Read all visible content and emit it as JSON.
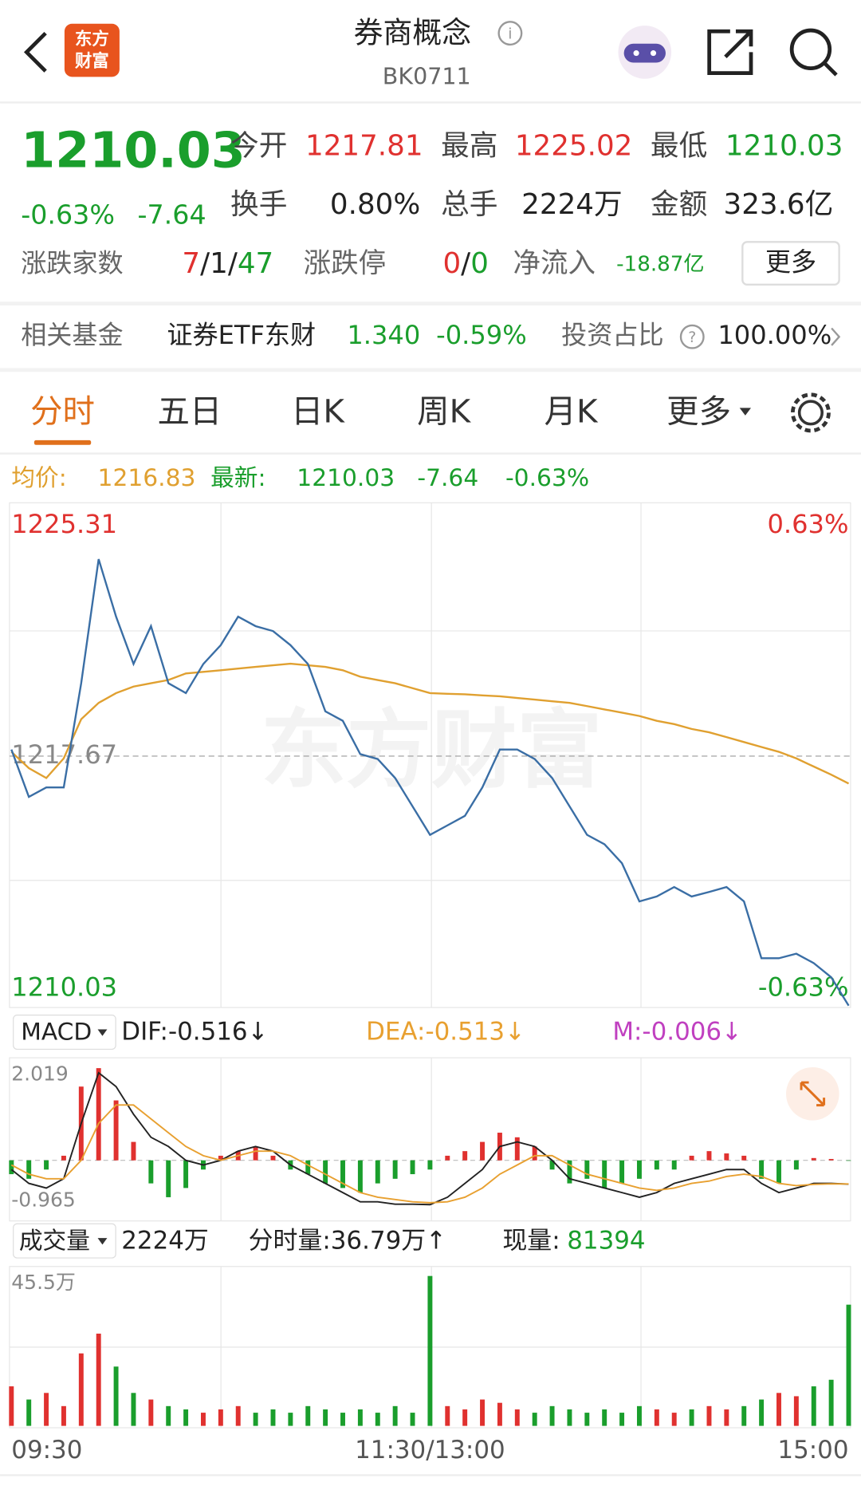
{
  "header": {
    "logo": [
      "东方",
      "财富"
    ],
    "title": "券商概念",
    "info_icon": "i",
    "code": "BK0711"
  },
  "quote": {
    "price": "1210.03",
    "change_pct": "-0.63%",
    "change": "-7.64",
    "fields": [
      {
        "label": "今开",
        "value": "1217.81"
      },
      {
        "label": "最高",
        "value": "1225.02"
      },
      {
        "label": "最低",
        "value": "1210.03"
      },
      {
        "label": "换手",
        "value": "0.80%"
      },
      {
        "label": "总手",
        "value": "2224万"
      },
      {
        "label": "金额",
        "value": "323.6亿"
      }
    ],
    "breadth": {
      "label": "涨跌家数",
      "up": "7",
      "flat": "1",
      "down": "47",
      "sep": "/"
    },
    "limit": {
      "label": "涨跌停",
      "up": "0",
      "down": "0",
      "sep": "/"
    },
    "inflow": {
      "label": "净流入",
      "value": "-18.87亿"
    },
    "more": "更多"
  },
  "fund": {
    "label": "相关基金",
    "name": "证券ETF东财",
    "price": "1.340",
    "pct": "-0.59%",
    "ratio_label": "投资占比",
    "help": "?",
    "ratio": "100.00%"
  },
  "tabs": [
    "分时",
    "五日",
    "日K",
    "周K",
    "月K",
    "更多"
  ],
  "info": {
    "avg_label": "均价:",
    "avg": "1216.83",
    "latest_label": "最新:",
    "latest": "1210.03",
    "change": "-7.64",
    "pct": "-0.63%"
  },
  "watermark": "东方财富",
  "macd_header": {
    "name": "MACD",
    "dif": "DIF:-0.516↓",
    "dea": "DEA:-0.513↓",
    "m": "M:-0.006↓"
  },
  "volume_header": {
    "name": "成交量",
    "total": "2224万",
    "minute": "分时量:36.79万↑",
    "now_label": "现量:",
    "now": "81394"
  },
  "chart_data": [
    {
      "type": "line",
      "categories": [
        "09:30",
        null,
        null,
        null,
        null,
        null,
        null,
        null,
        null,
        null,
        null,
        null,
        null,
        null,
        null,
        null,
        null,
        null,
        null,
        null,
        null,
        null,
        null,
        null,
        "11:30/13:00",
        null,
        null,
        null,
        null,
        null,
        null,
        null,
        null,
        null,
        null,
        null,
        null,
        null,
        null,
        null,
        null,
        null,
        null,
        null,
        null,
        null,
        null,
        null,
        "15:00"
      ],
      "ylim": [
        1210.03,
        1225.31
      ],
      "yticks": [
        1210.03,
        1217.67,
        1225.31
      ],
      "y2lim": [
        -0.63,
        0.63
      ],
      "y2ticks": [
        {
          "value": -0.63,
          "label": "-0.63%"
        },
        {
          "value": 0.63,
          "label": "0.63%"
        }
      ],
      "series": [
        {
          "name": "最新",
          "color": "#3a6ea5",
          "values": [
            1217.87,
            1216.42,
            1216.71,
            1216.71,
            1219.9,
            1223.7,
            1221.94,
            1220.49,
            1221.65,
            1219.9,
            1219.6,
            1220.49,
            1221.07,
            1221.94,
            1221.65,
            1221.5,
            1221.07,
            1220.49,
            1219.04,
            1218.75,
            1217.73,
            1217.58,
            1217.0,
            1216.13,
            1215.26,
            1215.55,
            1215.84,
            1216.71,
            1217.87,
            1217.87,
            1217.58,
            1217.0,
            1216.13,
            1215.26,
            1214.97,
            1214.39,
            1213.22,
            1213.37,
            1213.66,
            1213.37,
            1213.51,
            1213.66,
            1213.22,
            1211.48,
            1211.48,
            1211.62,
            1211.33,
            1210.9,
            1210.03
          ]
        },
        {
          "name": "均价",
          "color": "#e0a030",
          "values": [
            1217.8,
            1217.3,
            1217.0,
            1217.6,
            1218.8,
            1219.3,
            1219.6,
            1219.8,
            1219.9,
            1220.0,
            1220.2,
            1220.25,
            1220.3,
            1220.35,
            1220.4,
            1220.45,
            1220.5,
            1220.45,
            1220.4,
            1220.3,
            1220.1,
            1220.0,
            1219.9,
            1219.75,
            1219.6,
            1219.58,
            1219.56,
            1219.53,
            1219.5,
            1219.45,
            1219.4,
            1219.35,
            1219.3,
            1219.2,
            1219.1,
            1219.0,
            1218.9,
            1218.75,
            1218.65,
            1218.5,
            1218.4,
            1218.25,
            1218.1,
            1217.95,
            1217.8,
            1217.6,
            1217.35,
            1217.1,
            1216.83
          ]
        }
      ]
    },
    {
      "type": "macd",
      "ylim": [
        -0.965,
        2.019
      ],
      "yticks": [
        -0.965,
        2.019
      ],
      "series": [
        {
          "name": "M",
          "colors": [
            "#e0312f",
            "#1a9e2c"
          ],
          "values": [
            -0.3,
            -0.4,
            -0.2,
            0.1,
            1.6,
            2.0,
            1.3,
            0.4,
            -0.5,
            -0.8,
            -0.6,
            -0.2,
            0.1,
            0.2,
            0.3,
            0.1,
            -0.2,
            -0.3,
            -0.5,
            -0.6,
            -0.7,
            -0.5,
            -0.4,
            -0.3,
            -0.2,
            0.1,
            0.2,
            0.4,
            0.6,
            0.5,
            0.3,
            -0.2,
            -0.5,
            -0.4,
            -0.6,
            -0.5,
            -0.4,
            -0.2,
            -0.2,
            0.1,
            0.2,
            0.15,
            0.1,
            -0.4,
            -0.5,
            -0.2,
            0.05,
            0.03,
            -0.006
          ]
        },
        {
          "name": "DIF",
          "color": "#222222",
          "values": [
            -0.2,
            -0.5,
            -0.6,
            -0.4,
            0.8,
            1.9,
            1.6,
            1.0,
            0.5,
            0.3,
            0.0,
            -0.1,
            0.0,
            0.2,
            0.3,
            0.2,
            -0.1,
            -0.3,
            -0.5,
            -0.7,
            -0.9,
            -0.9,
            -0.95,
            -0.95,
            -0.96,
            -0.8,
            -0.5,
            -0.2,
            0.3,
            0.4,
            0.3,
            0.0,
            -0.4,
            -0.5,
            -0.6,
            -0.7,
            -0.8,
            -0.7,
            -0.5,
            -0.4,
            -0.3,
            -0.2,
            -0.2,
            -0.5,
            -0.7,
            -0.6,
            -0.5,
            -0.5,
            -0.516
          ]
        },
        {
          "name": "DEA",
          "color": "#e8a030",
          "values": [
            -0.1,
            -0.3,
            -0.4,
            -0.4,
            0.0,
            0.8,
            1.2,
            1.2,
            0.9,
            0.6,
            0.3,
            0.1,
            0.0,
            0.1,
            0.2,
            0.2,
            0.1,
            -0.1,
            -0.3,
            -0.5,
            -0.7,
            -0.8,
            -0.85,
            -0.9,
            -0.92,
            -0.9,
            -0.8,
            -0.6,
            -0.3,
            -0.1,
            0.1,
            0.1,
            -0.1,
            -0.3,
            -0.4,
            -0.5,
            -0.6,
            -0.65,
            -0.6,
            -0.5,
            -0.45,
            -0.35,
            -0.3,
            -0.35,
            -0.5,
            -0.55,
            -0.52,
            -0.51,
            -0.513
          ]
        }
      ]
    },
    {
      "type": "volume",
      "ylim": [
        0,
        45.5
      ],
      "yticks": [
        {
          "value": 45.5,
          "label": "45.5万"
        }
      ],
      "colors": [
        "#e0312f",
        "#1a9e2c"
      ],
      "values": [
        12,
        8,
        10,
        6,
        22,
        28,
        18,
        10,
        8,
        6,
        5,
        4,
        5,
        6,
        4,
        5,
        4,
        6,
        5,
        4,
        5,
        4,
        6,
        4,
        45.5,
        6,
        5,
        8,
        7,
        5,
        4,
        6,
        5,
        4,
        5,
        4,
        6,
        5,
        4,
        5,
        6,
        5,
        6,
        8,
        10,
        9,
        12,
        14,
        36.79
      ]
    }
  ]
}
